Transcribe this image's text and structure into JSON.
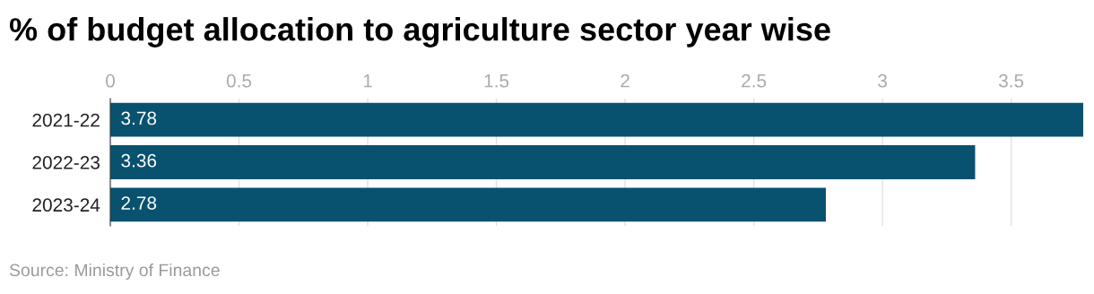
{
  "chart_data": {
    "type": "bar",
    "orientation": "horizontal",
    "title": "% of budget allocation to agriculture sector year wise",
    "categories": [
      "2021-22",
      "2022-23",
      "2023-24"
    ],
    "values": [
      3.78,
      3.36,
      2.78
    ],
    "color": "#08526f",
    "xlim": [
      0,
      3.78
    ],
    "xticks": [
      0,
      0.5,
      1,
      1.5,
      2,
      2.5,
      3,
      3.5
    ],
    "grid": "x",
    "data_labels": true,
    "annotations": [
      "Source: Ministry of Finance"
    ]
  }
}
